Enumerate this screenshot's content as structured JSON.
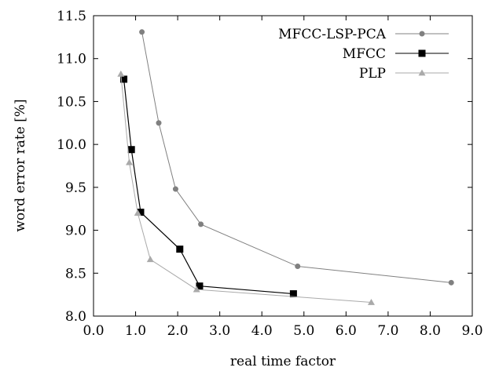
{
  "chart_data": {
    "type": "line",
    "xlabel": "real time factor",
    "ylabel": "word error rate [%]",
    "xlim": [
      0.0,
      9.0
    ],
    "ylim": [
      8.0,
      11.5
    ],
    "xticks": [
      "0.0",
      "1.0",
      "2.0",
      "3.0",
      "4.0",
      "5.0",
      "6.0",
      "7.0",
      "8.0",
      "9.0"
    ],
    "yticks": [
      "8.0",
      "8.5",
      "9.0",
      "9.5",
      "10.0",
      "10.5",
      "11.0",
      "11.5"
    ],
    "grid": false,
    "legend_position": "top-right",
    "series": [
      {
        "name": "MFCC-LSP-PCA",
        "color": "#808080",
        "marker": "circle",
        "x": [
          1.15,
          1.55,
          1.95,
          2.55,
          4.85,
          8.5
        ],
        "y": [
          11.31,
          10.25,
          9.48,
          9.07,
          8.58,
          8.39
        ]
      },
      {
        "name": "MFCC",
        "color": "#000000",
        "marker": "square",
        "x": [
          0.72,
          0.9,
          1.12,
          2.05,
          2.52,
          4.75
        ],
        "y": [
          10.76,
          9.94,
          9.21,
          8.78,
          8.35,
          8.26
        ]
      },
      {
        "name": "PLP",
        "color": "#aaaaaa",
        "marker": "triangle",
        "x": [
          0.65,
          0.85,
          1.05,
          1.35,
          2.45,
          6.6
        ],
        "y": [
          10.82,
          9.79,
          9.2,
          8.66,
          8.31,
          8.16
        ]
      }
    ]
  }
}
